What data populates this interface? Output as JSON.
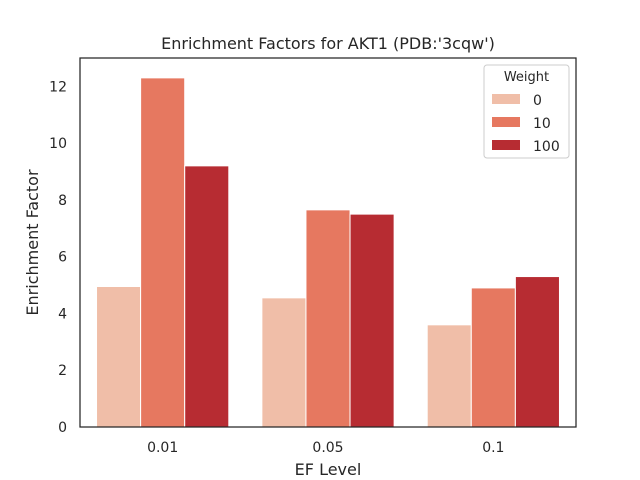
{
  "chart_data": {
    "type": "bar",
    "title": "Enrichment Factors for AKT1 (PDB:'3cqw')",
    "xlabel": "EF Level",
    "ylabel": "Enrichment Factor",
    "categories": [
      "0.01",
      "0.05",
      "0.1"
    ],
    "ylim": [
      0,
      13
    ],
    "yticks": [
      0,
      2,
      4,
      6,
      8,
      10,
      12
    ],
    "grid": false,
    "legend": {
      "title": "Weight",
      "placement": "top-right"
    },
    "series": [
      {
        "name": "0",
        "color": "#f0bea8",
        "values": [
          4.95,
          4.55,
          3.6
        ]
      },
      {
        "name": "10",
        "color": "#e67860",
        "values": [
          12.3,
          7.65,
          4.9
        ]
      },
      {
        "name": "100",
        "color": "#b72c32",
        "values": [
          9.2,
          7.5,
          5.3
        ]
      }
    ]
  }
}
